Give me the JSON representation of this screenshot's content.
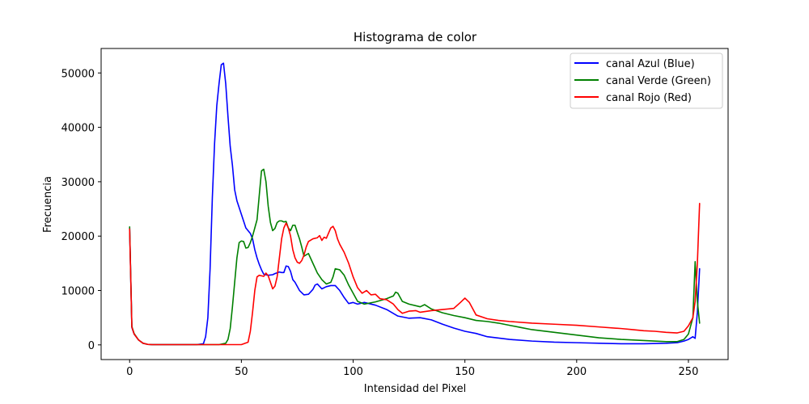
{
  "chart_data": {
    "type": "line",
    "title": "Histograma de color",
    "xlabel": "Intensidad del Pixel",
    "ylabel": "Frecuencia",
    "xlim": [
      -12.75,
      267.75
    ],
    "ylim": [
      -2700,
      54500
    ],
    "xticks": [
      0,
      50,
      100,
      150,
      200,
      250
    ],
    "yticks": [
      0,
      10000,
      20000,
      30000,
      40000,
      50000
    ],
    "grid": false,
    "legend_position": "top-right",
    "series": [
      {
        "name": "canal Azul (Blue)",
        "color": "#0000ff",
        "x": [
          0,
          1,
          2,
          4,
          6,
          8,
          10,
          15,
          20,
          25,
          30,
          33,
          34,
          35,
          36,
          37,
          38,
          39,
          40,
          41,
          42,
          43,
          44,
          45,
          46,
          47,
          48,
          50,
          52,
          54,
          55,
          56,
          57,
          58,
          59,
          60,
          62,
          64,
          65,
          67,
          68,
          69,
          70,
          71,
          72,
          73,
          74,
          76,
          78,
          80,
          82,
          83,
          84,
          86,
          88,
          90,
          92,
          94,
          96,
          98,
          100,
          102,
          105,
          110,
          115,
          120,
          125,
          130,
          135,
          140,
          145,
          150,
          155,
          160,
          170,
          180,
          190,
          200,
          210,
          220,
          230,
          240,
          245,
          248,
          250,
          252,
          253,
          254,
          255
        ],
        "y": [
          21500,
          3200,
          2000,
          900,
          300,
          100,
          50,
          50,
          50,
          50,
          50,
          200,
          1500,
          5000,
          14000,
          27000,
          37000,
          44000,
          48000,
          51500,
          51800,
          48000,
          42000,
          36500,
          33000,
          28500,
          26500,
          24000,
          21500,
          20500,
          19500,
          17500,
          16000,
          14800,
          13800,
          13000,
          12800,
          12900,
          13100,
          13400,
          13300,
          13300,
          14500,
          14400,
          13500,
          12000,
          11500,
          10000,
          9200,
          9300,
          10200,
          11000,
          11200,
          10300,
          10700,
          10900,
          10900,
          10000,
          8700,
          7600,
          7800,
          7500,
          7800,
          7300,
          6500,
          5300,
          4900,
          5000,
          4600,
          3800,
          3100,
          2500,
          2100,
          1500,
          1000,
          700,
          500,
          400,
          300,
          200,
          200,
          300,
          400,
          700,
          1000,
          1500,
          1200,
          6000,
          14000
        ]
      },
      {
        "name": "canal Verde (Green)",
        "color": "#008000",
        "x": [
          0,
          1,
          2,
          4,
          6,
          8,
          10,
          15,
          20,
          30,
          40,
          43,
          44,
          45,
          46,
          47,
          48,
          49,
          50,
          51,
          52,
          53,
          54,
          55,
          56,
          57,
          58,
          59,
          60,
          61,
          62,
          63,
          64,
          65,
          66,
          67,
          68,
          69,
          70,
          71,
          72,
          73,
          74,
          75,
          76,
          77,
          78,
          80,
          82,
          84,
          86,
          88,
          90,
          91,
          92,
          94,
          96,
          98,
          100,
          102,
          105,
          110,
          115,
          118,
          119,
          120,
          122,
          125,
          130,
          132,
          135,
          140,
          145,
          150,
          155,
          160,
          165,
          170,
          175,
          180,
          190,
          200,
          210,
          220,
          230,
          240,
          245,
          248,
          250,
          252,
          253,
          254,
          255
        ],
        "y": [
          21700,
          3400,
          2100,
          900,
          300,
          100,
          50,
          50,
          50,
          50,
          50,
          300,
          1000,
          3000,
          7000,
          11500,
          16000,
          18800,
          19100,
          19000,
          17800,
          17900,
          18800,
          20000,
          21500,
          23000,
          27500,
          32000,
          32300,
          30000,
          25500,
          22500,
          21000,
          21400,
          22500,
          22800,
          22800,
          22600,
          22700,
          21500,
          21000,
          22000,
          22000,
          20700,
          19500,
          18000,
          16300,
          16800,
          15000,
          13200,
          12000,
          11200,
          11500,
          12500,
          14000,
          13800,
          12800,
          11000,
          9500,
          8000,
          7500,
          7900,
          8500,
          9000,
          9700,
          9500,
          8000,
          7500,
          7000,
          7400,
          6600,
          5900,
          5400,
          5000,
          4500,
          4300,
          4000,
          3600,
          3200,
          2800,
          2300,
          1800,
          1300,
          1000,
          800,
          600,
          600,
          1000,
          2000,
          5000,
          15300,
          8000,
          4000
        ]
      },
      {
        "name": "canal Rojo (Red)",
        "color": "#ff0000",
        "x": [
          0,
          1,
          2,
          4,
          6,
          8,
          10,
          15,
          20,
          30,
          40,
          50,
          53,
          54,
          55,
          56,
          57,
          58,
          59,
          60,
          61,
          62,
          63,
          64,
          65,
          66,
          67,
          68,
          69,
          70,
          71,
          72,
          73,
          74,
          75,
          76,
          77,
          78,
          79,
          80,
          82,
          84,
          85,
          86,
          87,
          88,
          90,
          91,
          92,
          93,
          94,
          96,
          98,
          100,
          102,
          104,
          106,
          108,
          110,
          112,
          115,
          118,
          120,
          122,
          125,
          128,
          130,
          135,
          140,
          145,
          148,
          150,
          152,
          155,
          160,
          165,
          170,
          180,
          190,
          200,
          210,
          220,
          225,
          230,
          235,
          240,
          245,
          248,
          250,
          252,
          253,
          254,
          255
        ],
        "y": [
          21300,
          3300,
          2000,
          900,
          300,
          100,
          50,
          50,
          50,
          50,
          50,
          50,
          500,
          2500,
          6000,
          10000,
          12500,
          12800,
          12700,
          12600,
          13200,
          12700,
          11500,
          10300,
          10800,
          12500,
          16000,
          19500,
          21500,
          22400,
          21500,
          20000,
          17500,
          16000,
          15200,
          15000,
          15500,
          16500,
          18000,
          19000,
          19500,
          19700,
          20100,
          19200,
          19800,
          19600,
          21500,
          21800,
          21000,
          19500,
          18500,
          17000,
          15000,
          12500,
          10500,
          9500,
          10000,
          9200,
          9300,
          8500,
          8300,
          7500,
          6500,
          5800,
          6200,
          6300,
          6000,
          6300,
          6500,
          6700,
          7800,
          8600,
          7800,
          5500,
          4800,
          4500,
          4300,
          4000,
          3800,
          3600,
          3300,
          3000,
          2800,
          2600,
          2500,
          2300,
          2200,
          2500,
          3500,
          5000,
          8000,
          15000,
          26000
        ]
      }
    ]
  }
}
